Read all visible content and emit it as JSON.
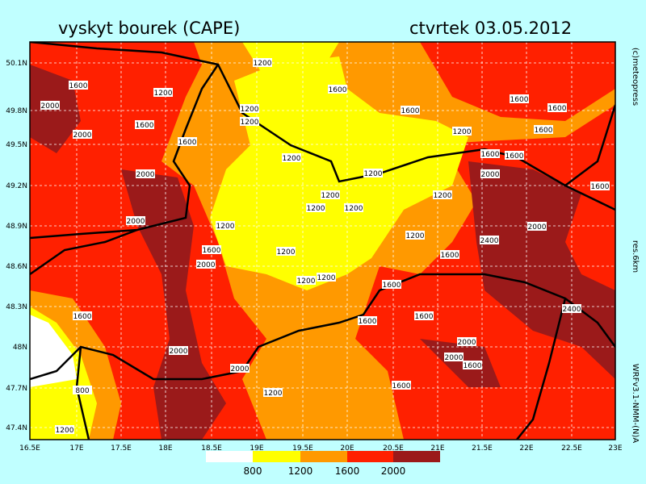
{
  "header": {
    "title": "vyskyt bourek (CAPE)",
    "date": "ctvrtek 03.05.2012"
  },
  "side_labels": {
    "credit": "(c)meteopress",
    "resolution": "res.6km",
    "model": "WRFv3.1-NMM-(N)A"
  },
  "lat_labels": [
    "50.1N",
    "49.8N",
    "49.5N",
    "49.2N",
    "48.9N",
    "48.6N",
    "48.3N",
    "48N",
    "47.7N",
    "47.4N"
  ],
  "lon_labels": [
    "16.5E",
    "17E",
    "17.5E",
    "18E",
    "18.5E",
    "19E",
    "19.5E",
    "20E",
    "20.5E",
    "21E",
    "21.5E",
    "22E",
    "22.5E",
    "23E"
  ],
  "legend": {
    "labels": [
      "800",
      "1200",
      "1600",
      "2000"
    ]
  },
  "contour_labels": [
    "1200",
    "1600",
    "1200",
    "2000",
    "1600",
    "1200",
    "1200",
    "1600",
    "1600",
    "1600",
    "1600",
    "1200",
    "1600",
    "1600",
    "2000",
    "1200",
    "1600",
    "1600",
    "1200",
    "2000",
    "2000",
    "1200",
    "1200",
    "1600",
    "2000",
    "1200",
    "1200",
    "1200",
    "2000",
    "2400",
    "1200",
    "1600",
    "2000",
    "1200",
    "1600",
    "1200",
    "1200",
    "1600",
    "1600",
    "1600",
    "1600",
    "2400",
    "2000",
    "2000",
    "2000",
    "1600",
    "2000",
    "800",
    "1600",
    "1200",
    "1200"
  ]
}
